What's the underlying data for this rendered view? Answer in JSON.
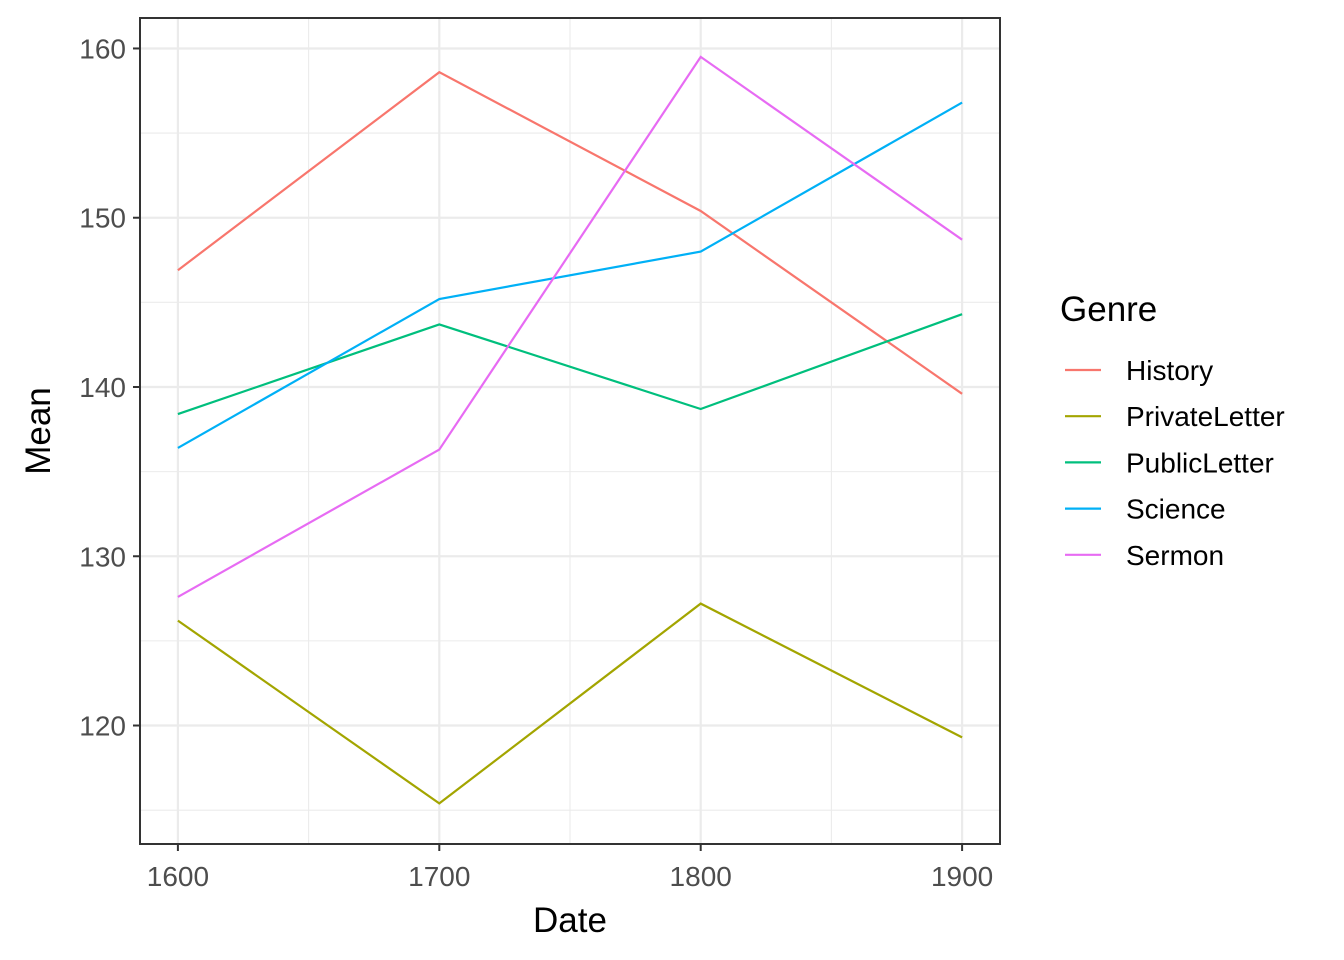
{
  "chart_data": {
    "type": "line",
    "xlabel": "Date",
    "ylabel": "Mean",
    "x": [
      1600,
      1700,
      1800,
      1900
    ],
    "x_ticks": [
      "1600",
      "1700",
      "1800",
      "1900"
    ],
    "y_ticks": [
      "120",
      "130",
      "140",
      "150",
      "160"
    ],
    "xlim": [
      1585.5,
      1914.5
    ],
    "ylim": [
      113.0,
      161.8
    ],
    "grid": true,
    "legend": {
      "title": "Genre",
      "position": "right"
    },
    "series": [
      {
        "name": "History",
        "color": "#F8766D",
        "values": [
          146.9,
          158.6,
          150.4,
          139.6
        ]
      },
      {
        "name": "PrivateLetter",
        "color": "#A3A500",
        "values": [
          126.2,
          115.4,
          127.2,
          119.3
        ]
      },
      {
        "name": "PublicLetter",
        "color": "#00BF7D",
        "values": [
          138.4,
          143.7,
          138.7,
          144.3
        ]
      },
      {
        "name": "Science",
        "color": "#00B0F6",
        "values": [
          136.4,
          145.2,
          148.0,
          156.8
        ]
      },
      {
        "name": "Sermon",
        "color": "#E76BF3",
        "values": [
          127.6,
          136.3,
          159.5,
          148.7
        ]
      }
    ]
  }
}
